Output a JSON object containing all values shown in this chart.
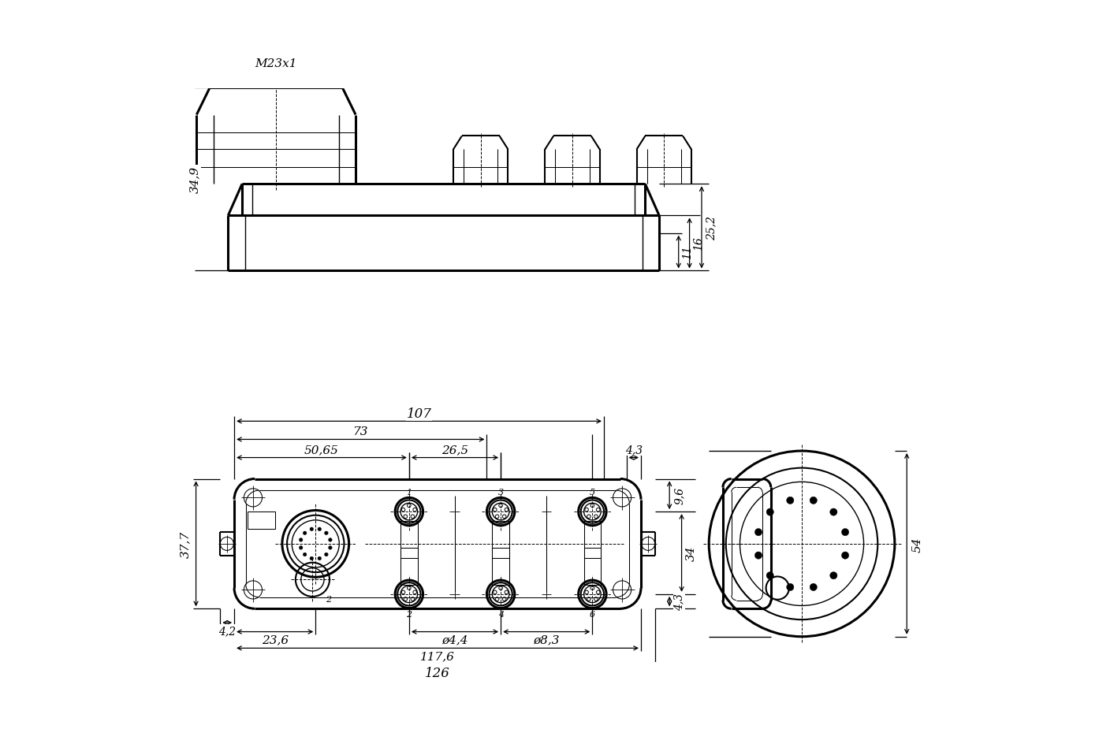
{
  "bg_color": "#ffffff",
  "lc": "#000000",
  "fig_width": 13.94,
  "fig_height": 9.45,
  "dims": {
    "m23x1": "M23x1",
    "d349": "34,9",
    "d11": "11",
    "d16": "16",
    "d252": "25,2",
    "d107": "107",
    "d73": "73",
    "d5065": "50,65",
    "d265": "26,5",
    "d43": "4,3",
    "d377": "37,7",
    "d96": "9,6",
    "d34": "34",
    "d43b": "4,3",
    "d236": "23,6",
    "dphi44": "ø4,4",
    "dphi83": "ø8,3",
    "d1176": "117,6",
    "d126": "126",
    "d42": "4,2",
    "d54": "54"
  }
}
